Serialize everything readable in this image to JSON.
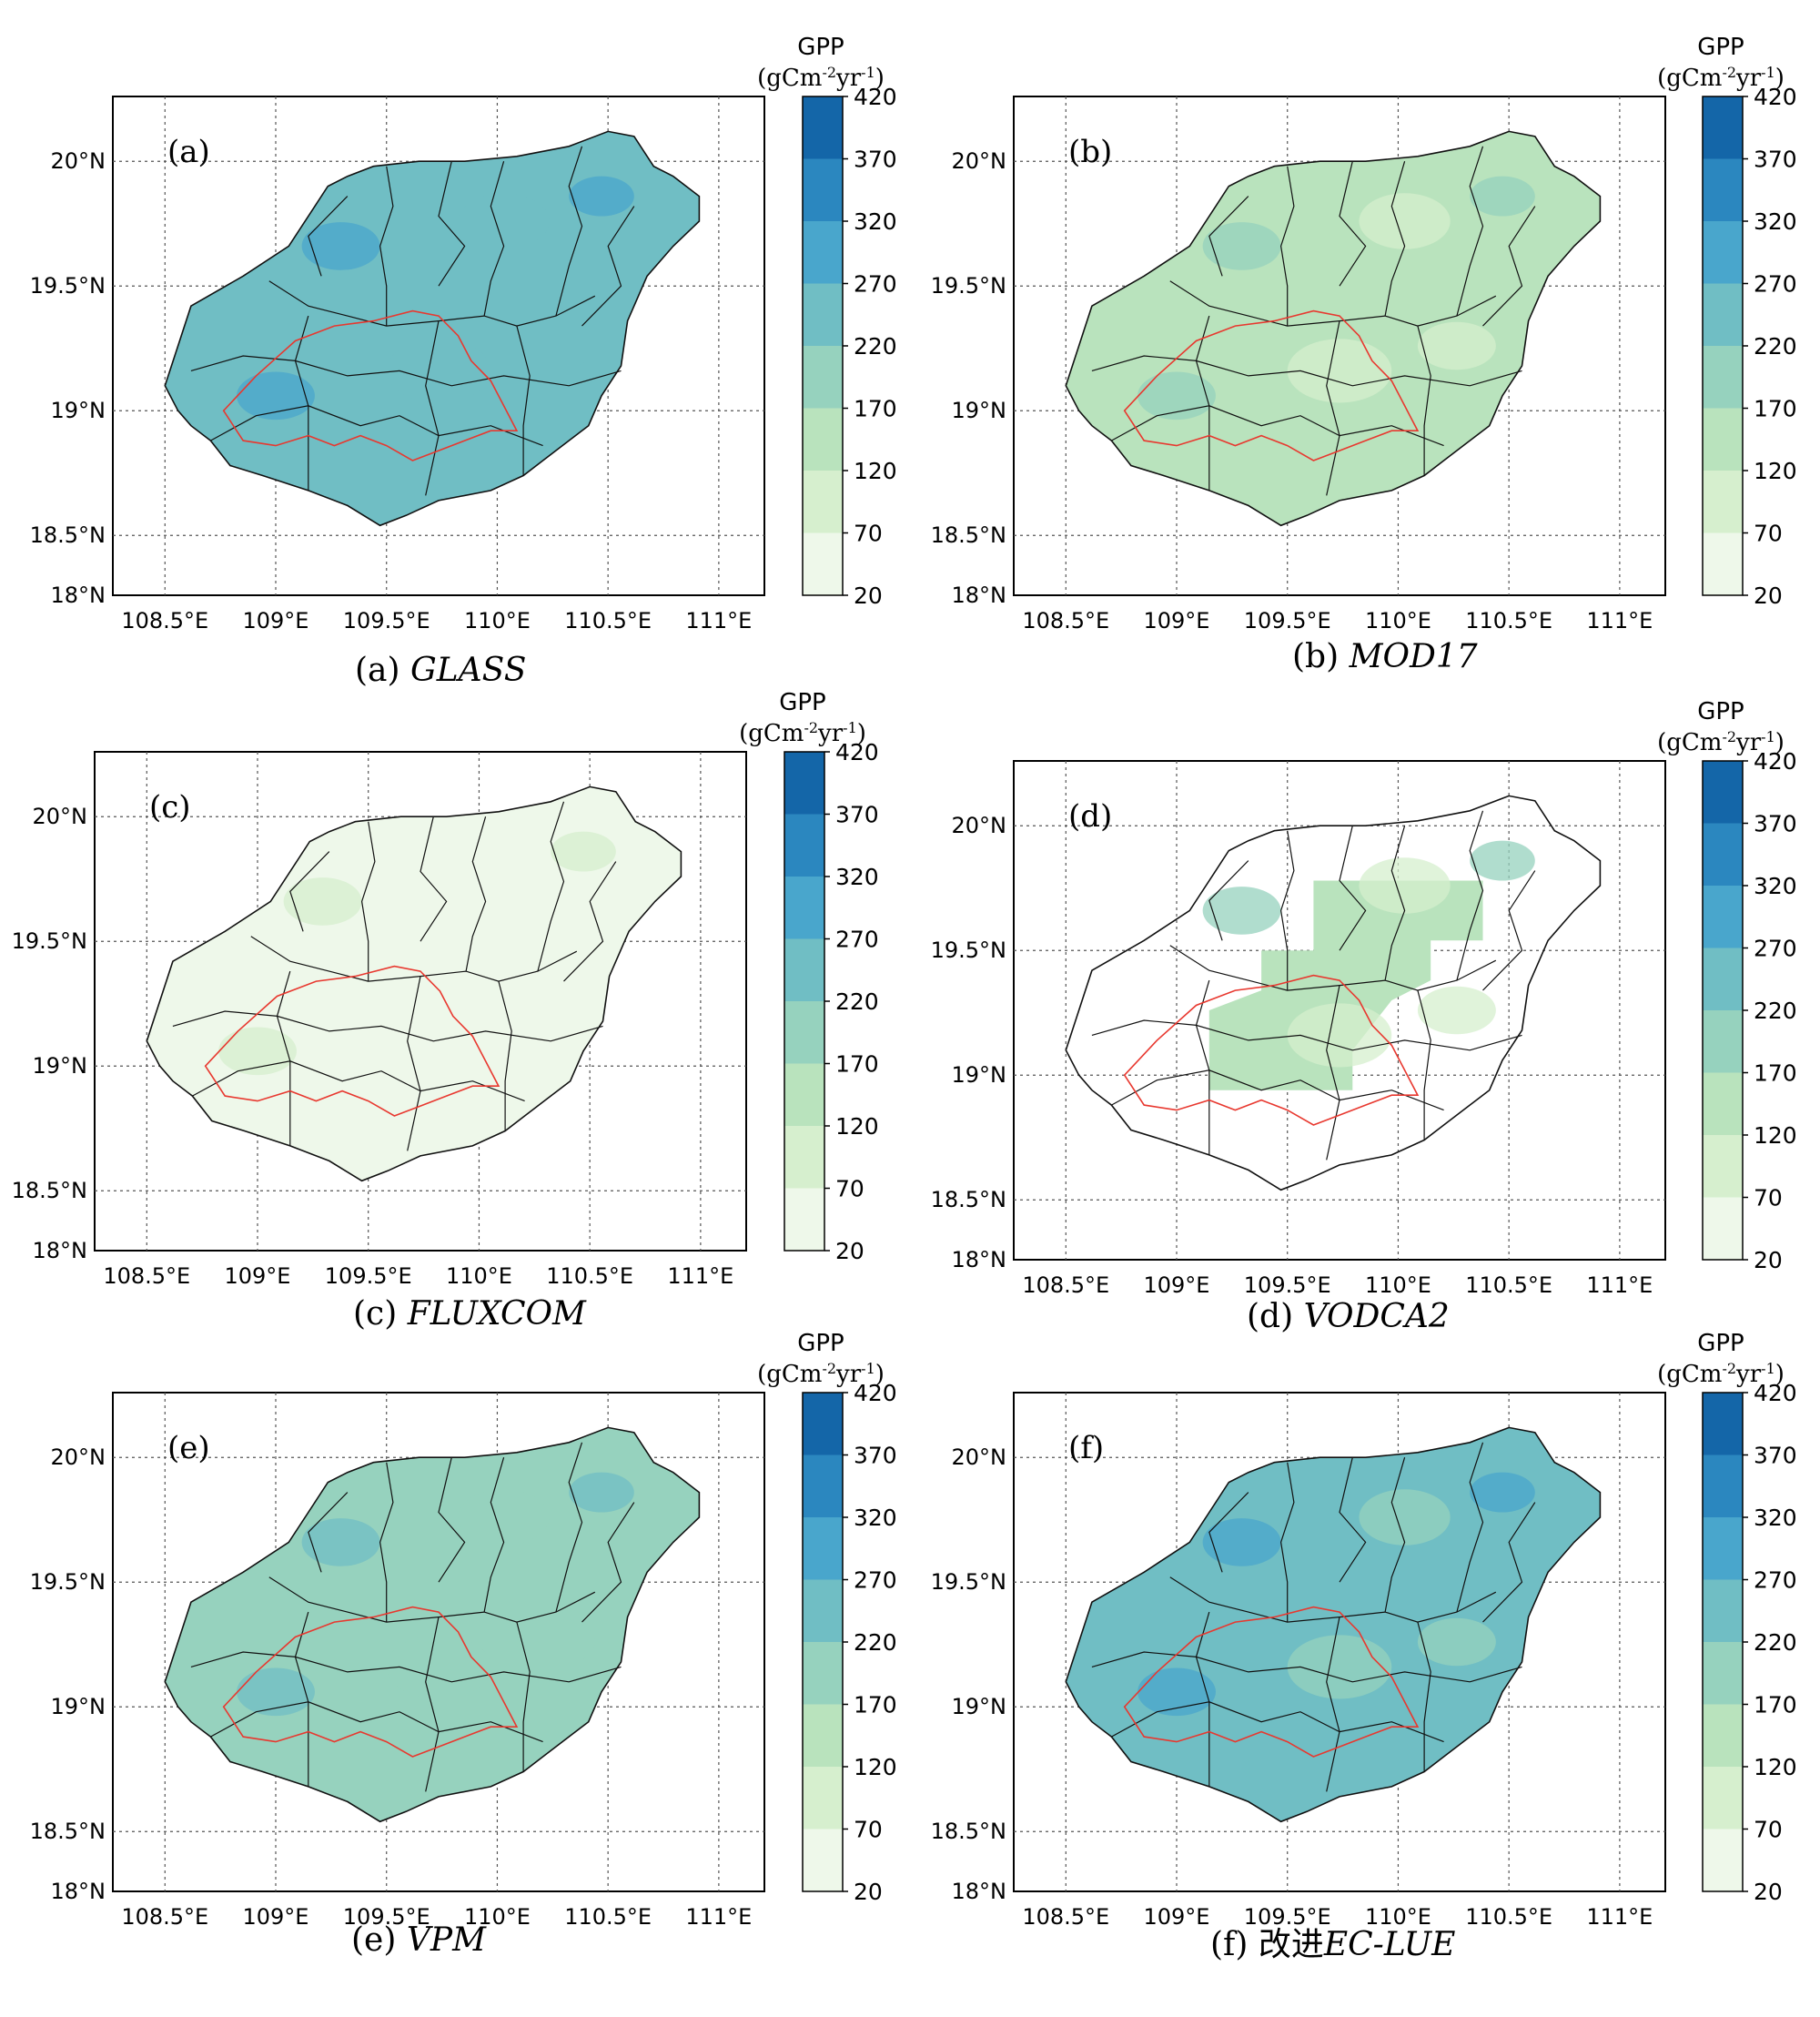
{
  "colorbar": {
    "title": "GPP",
    "unit_prefix": "(gCm",
    "unit_exp1": "-2",
    "unit_mid": "yr",
    "unit_exp2": "-1",
    "unit_suffix": ")",
    "ticks": [
      "20",
      "70",
      "120",
      "170",
      "220",
      "270",
      "320",
      "370",
      "420"
    ],
    "colors": [
      "#eef8ea",
      "#d6efce",
      "#b9e3bd",
      "#96d2be",
      "#70bec4",
      "#49a6cc",
      "#2b87bf",
      "#1466a8",
      "#084482"
    ]
  },
  "axes": {
    "lon_labels": [
      "108.5°E",
      "109°E",
      "109.5°E",
      "110°E",
      "110.5°E",
      "111°E"
    ],
    "lat_labels": [
      "20°N",
      "19.5°N",
      "19°N",
      "18.5°N",
      "18°N"
    ]
  },
  "colors": {
    "coast": "#111111",
    "county": "#111111",
    "reserve": "#e8382f",
    "grid": "#555555"
  },
  "panels": [
    {
      "id": "a",
      "tag": "(a)",
      "caption_prefix": "(a) ",
      "caption_name": "GLASS",
      "level": 0.55,
      "coverage": "full"
    },
    {
      "id": "b",
      "tag": "(b)",
      "caption_prefix": "(b)  ",
      "caption_name": "MOD17",
      "level": 0.2,
      "coverage": "full"
    },
    {
      "id": "c",
      "tag": "(c)",
      "caption_prefix": "(c)  ",
      "caption_name": "FLUXCOM",
      "level": 0.05,
      "coverage": "full"
    },
    {
      "id": "d",
      "tag": "(d)",
      "caption_prefix": "(d)  ",
      "caption_name": "VODCA2",
      "level": 0.2,
      "coverage": "partial"
    },
    {
      "id": "e",
      "tag": "(e)",
      "caption_prefix": "(e)  ",
      "caption_name": "VPM",
      "level": 0.4,
      "coverage": "full"
    },
    {
      "id": "f",
      "tag": "(f)",
      "caption_prefix": "(f)  改进",
      "caption_name": "EC-LUE",
      "level": 0.5,
      "coverage": "full"
    }
  ]
}
